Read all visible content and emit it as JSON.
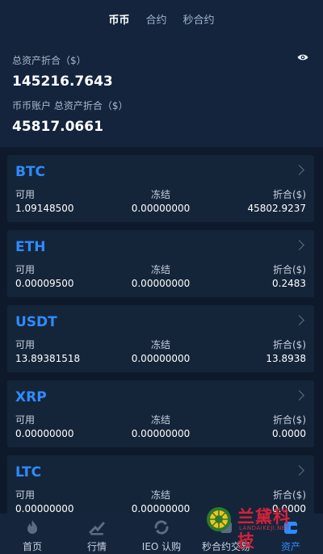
{
  "tabs": [
    {
      "label": "币币",
      "active": true
    },
    {
      "label": "合约",
      "active": false
    },
    {
      "label": "秒合约",
      "active": false
    }
  ],
  "summary": {
    "total_label": "总资产折合（$）",
    "total_value": "145216.7643",
    "account_label": "币币账户   总资产折合（$）",
    "account_value": "45817.0661",
    "eye_icon": "eye-icon"
  },
  "columns": {
    "available": "可用",
    "frozen": "冻结",
    "equivalent": "折合($)"
  },
  "assets": [
    {
      "coin": "BTC",
      "available": "1.09148500",
      "frozen": "0.00000000",
      "equivalent": "45802.9237"
    },
    {
      "coin": "ETH",
      "available": "0.00009500",
      "frozen": "0.00000000",
      "equivalent": "0.2483"
    },
    {
      "coin": "USDT",
      "available": "13.89381518",
      "frozen": "0.00000000",
      "equivalent": "13.8938"
    },
    {
      "coin": "XRP",
      "available": "0.00000000",
      "frozen": "0.00000000",
      "equivalent": "0.0000"
    },
    {
      "coin": "LTC",
      "available": "0.00000000",
      "frozen": "0.00000000",
      "equivalent": "0.0000"
    }
  ],
  "bottom_nav": [
    {
      "label": "首页",
      "icon": "flame-icon",
      "active": false
    },
    {
      "label": "行情",
      "icon": "chart-icon",
      "active": false
    },
    {
      "label": "IEO 认购",
      "icon": "refresh-icon",
      "active": false
    },
    {
      "label": "秒合约交易",
      "icon": "trade-icon",
      "active": false
    },
    {
      "label": "资产",
      "icon": "wallet-icon",
      "active": true
    }
  ],
  "watermark": {
    "title": "兰黛科技",
    "subtitle": "LANDAIKEJI.NET",
    "colors": {
      "red": "#d4213a",
      "accent": "#2f8bff"
    }
  }
}
